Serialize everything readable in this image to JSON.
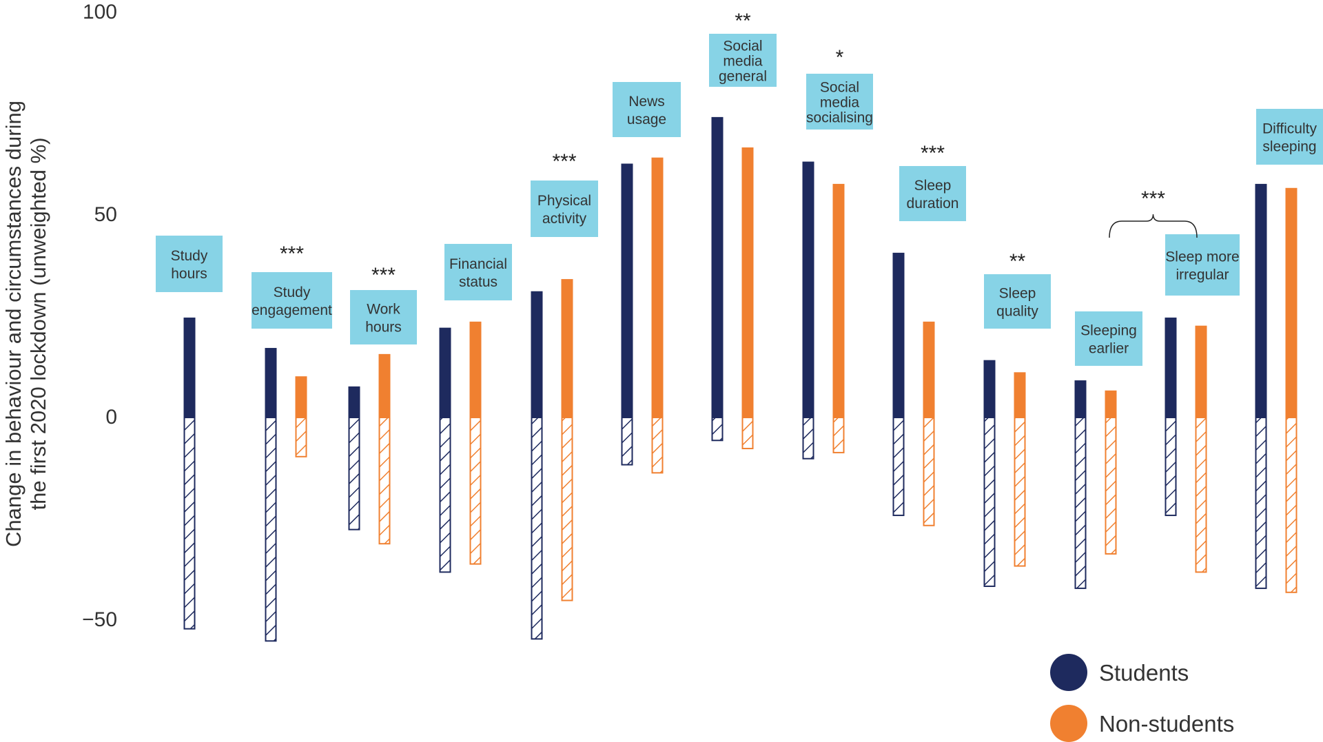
{
  "chart_data": {
    "type": "bar",
    "ylabel_lines": [
      "Change in behaviour and circumstances during",
      "the first 2020 lockdown (unweighted %)"
    ],
    "ylim": [
      -50,
      100
    ],
    "yticks": [
      {
        "value": 100,
        "label": "100"
      },
      {
        "value": 50,
        "label": "50"
      },
      {
        "value": 0,
        "label": "0"
      },
      {
        "value": -50,
        "label": "−50"
      }
    ],
    "series": [
      {
        "name": "Students",
        "color": "#1e2a5e"
      },
      {
        "name": "Non-students",
        "color": "#f08030"
      }
    ],
    "label_box_color": "#87d3e6",
    "categories": [
      {
        "label": [
          "Study",
          "hours"
        ],
        "sig": "",
        "students": [
          24.5,
          -52.5
        ],
        "non_students": null
      },
      {
        "label": [
          "Study",
          "engagement"
        ],
        "sig": "***",
        "students": [
          17,
          -55.5
        ],
        "non_students": [
          10,
          -10
        ]
      },
      {
        "label": [
          "Work",
          "hours"
        ],
        "sig": "***",
        "students": [
          7.5,
          -28
        ],
        "non_students": [
          15.5,
          -31.5
        ]
      },
      {
        "label": [
          "Financial",
          "status"
        ],
        "sig": "",
        "students": [
          22,
          -38.5
        ],
        "non_students": [
          23.5,
          -36.5
        ]
      },
      {
        "label": [
          "Physical",
          "activity"
        ],
        "sig": "***",
        "students": [
          31,
          -55
        ],
        "non_students": [
          34,
          -45.5
        ]
      },
      {
        "label": [
          "News",
          "usage"
        ],
        "sig": "",
        "students": [
          62.5,
          -12
        ],
        "non_students": [
          64,
          -14
        ]
      },
      {
        "label": [
          "Social",
          "media",
          "general"
        ],
        "sig": "**",
        "students": [
          74,
          -6
        ],
        "non_students": [
          66.5,
          -8
        ]
      },
      {
        "label": [
          "Social",
          "media",
          "socialising"
        ],
        "sig": "*",
        "students": [
          63,
          -10.5
        ],
        "non_students": [
          57.5,
          -9
        ]
      },
      {
        "label": [
          "Sleep",
          "duration"
        ],
        "sig": "***",
        "students": [
          40.5,
          -24.5
        ],
        "non_students": [
          23.5,
          -27
        ]
      },
      {
        "label": [
          "Sleep",
          "quality"
        ],
        "sig": "**",
        "students": [
          14,
          -42
        ],
        "non_students": [
          11,
          -37
        ]
      },
      {
        "label": [
          "Sleeping",
          "earlier"
        ],
        "sig": "",
        "students": [
          9,
          -42.5
        ],
        "non_students": [
          6.5,
          -34
        ]
      },
      {
        "label": [
          "Sleep more",
          "irregular"
        ],
        "sig": "",
        "students": [
          24.5,
          -24.5
        ],
        "non_students": [
          22.5,
          -38.5
        ]
      },
      {
        "label": [
          "Difficulty",
          "sleeping"
        ],
        "sig": "",
        "students": [
          57.5,
          -42.5
        ],
        "non_students": [
          56.5,
          -43.5
        ]
      }
    ],
    "bracket_annotation": {
      "label": "***",
      "from_category": 10,
      "to_category": 11
    }
  }
}
